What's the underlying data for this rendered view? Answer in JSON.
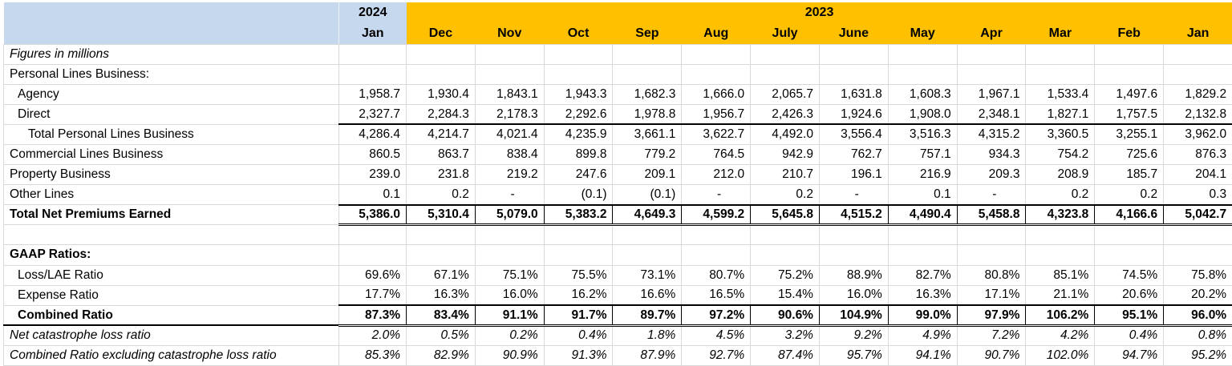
{
  "colors": {
    "header_2024_bg": "#C6D8EE",
    "header_2023_bg": "#FFC000",
    "gridline": "#D9D9D9",
    "text": "#000000",
    "background": "#FFFFFF"
  },
  "header": {
    "year_2024": "2024",
    "month_2024": "Jan",
    "year_2023": "2023",
    "months_2023": [
      "Dec",
      "Nov",
      "Oct",
      "Sep",
      "Aug",
      "July",
      "June",
      "May",
      "Apr",
      "Mar",
      "Feb",
      "Jan"
    ]
  },
  "table": {
    "rows": [
      {
        "name": "figures-note",
        "label": "Figures in millions",
        "label_style": "italic",
        "indent": 0,
        "values": null
      },
      {
        "name": "personal-lines-section",
        "label": "Personal Lines Business:",
        "indent": 0,
        "values": null
      },
      {
        "name": "agency",
        "label": "Agency",
        "indent": 1,
        "values": [
          "1,958.7",
          "1,930.4",
          "1,843.1",
          "1,943.3",
          "1,682.3",
          "1,666.0",
          "2,065.7",
          "1,631.8",
          "1,608.3",
          "1,967.1",
          "1,533.4",
          "1,497.6",
          "1,829.2"
        ]
      },
      {
        "name": "direct",
        "label": "Direct",
        "indent": 1,
        "values": [
          "2,327.7",
          "2,284.3",
          "2,178.3",
          "2,292.6",
          "1,978.8",
          "1,956.7",
          "2,426.3",
          "1,924.6",
          "1,908.0",
          "2,348.1",
          "1,827.1",
          "1,757.5",
          "2,132.8"
        ]
      },
      {
        "name": "total-personal-lines",
        "label": "Total Personal Lines Business",
        "indent": 2,
        "value_border": "top",
        "values": [
          "4,286.4",
          "4,214.7",
          "4,021.4",
          "4,235.9",
          "3,661.1",
          "3,622.7",
          "4,492.0",
          "3,556.4",
          "3,516.3",
          "4,315.2",
          "3,360.5",
          "3,255.1",
          "3,962.0"
        ]
      },
      {
        "name": "commercial-lines",
        "label": "Commercial Lines Business",
        "indent": 0,
        "values": [
          "860.5",
          "863.7",
          "838.4",
          "899.8",
          "779.2",
          "764.5",
          "942.9",
          "762.7",
          "757.1",
          "934.3",
          "754.2",
          "725.6",
          "876.3"
        ]
      },
      {
        "name": "property-business",
        "label": "Property Business",
        "indent": 0,
        "values": [
          "239.0",
          "231.8",
          "219.2",
          "247.6",
          "209.1",
          "212.0",
          "210.7",
          "196.1",
          "216.9",
          "209.3",
          "208.9",
          "185.7",
          "204.1"
        ]
      },
      {
        "name": "other-lines",
        "label": "Other Lines",
        "indent": 0,
        "values": [
          "0.1",
          "0.2",
          "-",
          "(0.1)",
          "(0.1)",
          "-",
          "0.2",
          "-",
          "0.1",
          "-",
          "0.2",
          "0.2",
          "0.3"
        ]
      },
      {
        "name": "total-net-premiums-earned",
        "label": "Total Net Premiums Earned",
        "label_style": "bold",
        "values_style": "bold",
        "value_border": "grand",
        "values": [
          "5,386.0",
          "5,310.4",
          "5,079.0",
          "5,383.2",
          "4,649.3",
          "4,599.2",
          "5,645.8",
          "4,515.2",
          "4,490.4",
          "5,458.8",
          "4,323.8",
          "4,166.6",
          "5,042.7"
        ]
      },
      {
        "name": "spacer",
        "label": "",
        "values": null
      },
      {
        "name": "gaap-ratios-section",
        "label": "GAAP Ratios:",
        "label_style": "bold",
        "indent": 0,
        "values": null
      },
      {
        "name": "loss-lae-ratio",
        "label": "Loss/LAE Ratio",
        "indent": 1,
        "values": [
          "69.6%",
          "67.1%",
          "75.1%",
          "75.5%",
          "73.1%",
          "80.7%",
          "75.2%",
          "88.9%",
          "82.7%",
          "80.8%",
          "85.1%",
          "74.5%",
          "75.8%"
        ]
      },
      {
        "name": "expense-ratio",
        "label": "Expense Ratio",
        "indent": 1,
        "values": [
          "17.7%",
          "16.3%",
          "16.0%",
          "16.2%",
          "16.6%",
          "16.5%",
          "15.4%",
          "16.0%",
          "16.3%",
          "17.1%",
          "21.1%",
          "20.6%",
          "20.2%"
        ]
      },
      {
        "name": "combined-ratio",
        "label": "Combined Ratio",
        "label_style": "bold",
        "indent": 1,
        "values_style": "bold",
        "value_border": "grand",
        "label_border": "dark-bottom",
        "values": [
          "87.3%",
          "83.4%",
          "91.1%",
          "91.7%",
          "89.7%",
          "97.2%",
          "90.6%",
          "104.9%",
          "99.0%",
          "97.9%",
          "106.2%",
          "95.1%",
          "96.0%"
        ]
      },
      {
        "name": "net-catastrophe-loss-ratio",
        "label": "Net catastrophe loss ratio",
        "label_style": "italic",
        "values_style": "italic",
        "indent": 0,
        "values": [
          "2.0%",
          "0.5%",
          "0.2%",
          "0.4%",
          "1.8%",
          "4.5%",
          "3.2%",
          "9.2%",
          "4.9%",
          "7.2%",
          "4.2%",
          "0.4%",
          "0.8%"
        ]
      },
      {
        "name": "combined-ratio-ex-catastrophe",
        "label": "Combined Ratio excluding catastrophe loss ratio",
        "label_style": "italic",
        "values_style": "italic",
        "indent": 0,
        "values": [
          "85.3%",
          "82.9%",
          "90.9%",
          "91.3%",
          "87.9%",
          "92.7%",
          "87.4%",
          "95.7%",
          "94.1%",
          "90.7%",
          "102.0%",
          "94.7%",
          "95.2%"
        ]
      }
    ]
  }
}
